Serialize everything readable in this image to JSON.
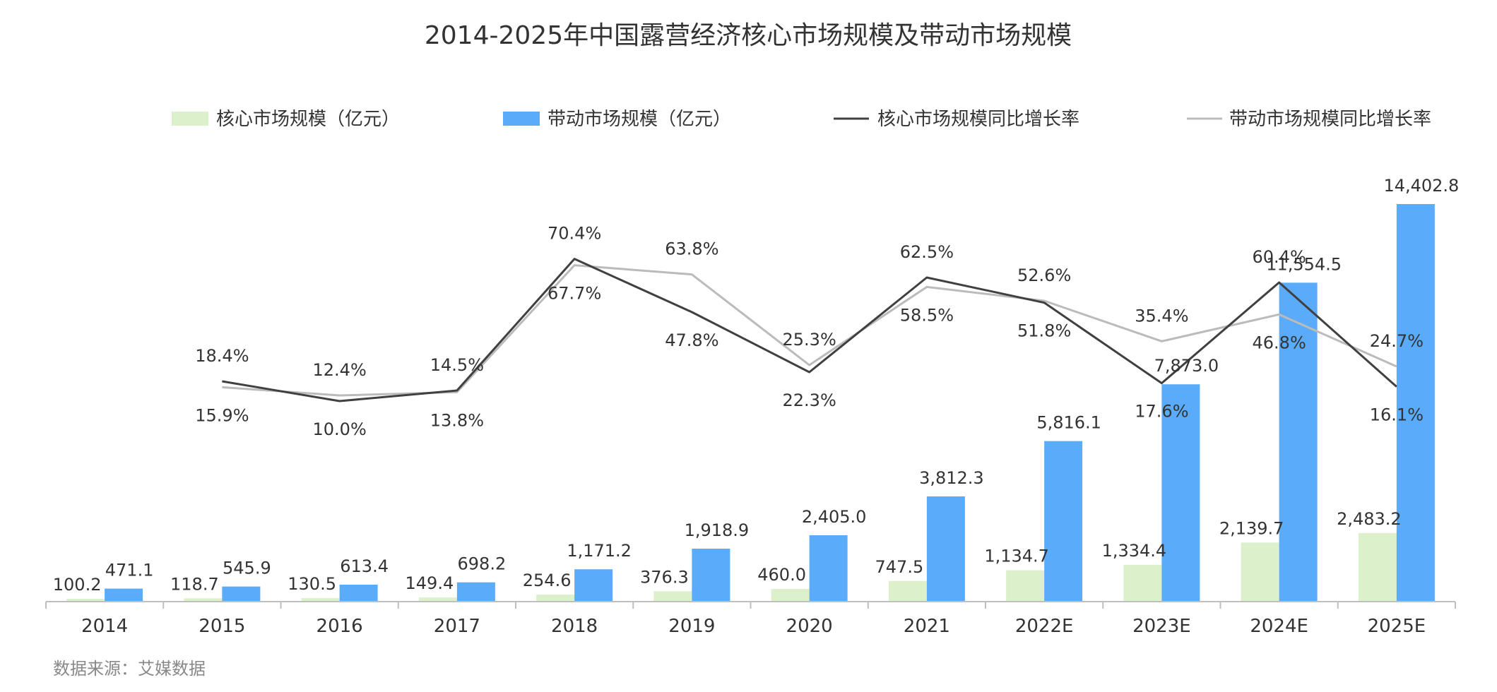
{
  "chart_data": {
    "type": "bar",
    "title": "2014-2025年中国露营经济核心市场规模及带动市场规模",
    "categories": [
      "2014",
      "2015",
      "2016",
      "2017",
      "2018",
      "2019",
      "2020",
      "2021",
      "2022E",
      "2023E",
      "2024E",
      "2025E"
    ],
    "series": [
      {
        "name": "核心市场规模（亿元）",
        "kind": "bar",
        "color": "#dcf0cc",
        "values": [
          100.2,
          118.7,
          130.5,
          149.4,
          254.6,
          376.3,
          460.0,
          747.5,
          1134.7,
          1334.4,
          2139.7,
          2483.2
        ],
        "labels": [
          "100.2",
          "118.7",
          "130.5",
          "149.4",
          "254.6",
          "376.3",
          "460.0",
          "747.5",
          "1,134.7",
          "1,334.4",
          "2,139.7",
          "2,483.2"
        ]
      },
      {
        "name": "带动市场规模（亿元）",
        "kind": "bar",
        "color": "#5aabfa",
        "values": [
          471.1,
          545.9,
          613.4,
          698.2,
          1171.2,
          1918.9,
          2405.0,
          3812.3,
          5816.1,
          7873.0,
          11554.5,
          14402.8
        ],
        "labels": [
          "471.1",
          "545.9",
          "613.4",
          "698.2",
          "1,171.2",
          "1,918.9",
          "2,405.0",
          "3,812.3",
          "5,816.1",
          "7,873.0",
          "11,554.5",
          "14,402.8"
        ]
      },
      {
        "name": "核心市场规模同比增长率",
        "kind": "line",
        "color": "#404040",
        "values": [
          null,
          18.4,
          10.0,
          14.5,
          70.4,
          47.8,
          22.3,
          62.5,
          51.8,
          17.6,
          60.4,
          16.1
        ],
        "labels": [
          "",
          "18.4%",
          "10.0%",
          "14.5%",
          "70.4%",
          "47.8%",
          "22.3%",
          "62.5%",
          "51.8%",
          "17.6%",
          "60.4%",
          "16.1%"
        ]
      },
      {
        "name": "带动市场规模同比增长率",
        "kind": "line",
        "color": "#bbbbbb",
        "values": [
          null,
          15.9,
          12.4,
          13.8,
          67.7,
          63.8,
          25.3,
          58.5,
          52.6,
          35.4,
          46.8,
          24.7
        ],
        "labels": [
          "",
          "15.9%",
          "12.4%",
          "13.8%",
          "67.7%",
          "63.8%",
          "25.3%",
          "58.5%",
          "52.6%",
          "35.4%",
          "46.8%",
          "24.7%"
        ]
      }
    ],
    "legend_position": "top",
    "grid": false
  },
  "source": "数据来源：艾媒数据"
}
